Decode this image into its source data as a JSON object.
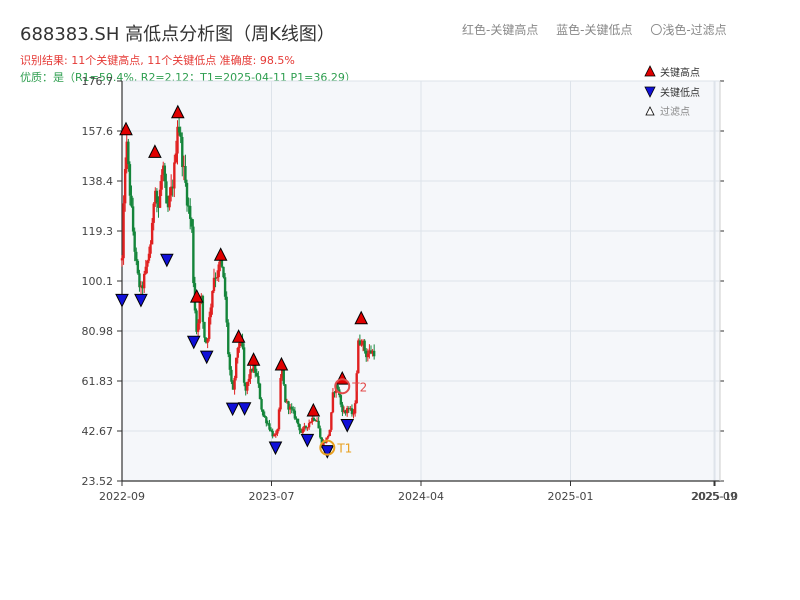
{
  "header": {
    "title": "688383.SH 高低点分析图（周K线图）",
    "result_line": "识别结果: 11个关键高点, 11个关键低点   准确度: 98.5%",
    "quality_line": "优质：是（R1=50.4%, R2=2.12；T1=2025-04-11 P1=36.29）"
  },
  "top_legend": {
    "red": "红色-关键高点",
    "blue": "蓝色-关键低点",
    "light": "〇浅色-过滤点"
  },
  "legend": {
    "high": "关键高点",
    "low": "关键低点",
    "filtered": "过滤点"
  },
  "colors": {
    "up": "#e02020",
    "down": "#14853a",
    "high_marker": "#e00000",
    "low_marker": "#1010d8",
    "t1": "#e8a020",
    "t2": "#e24a4a",
    "plot_bg": "#f5f7fa",
    "grid": "#dde3ea"
  },
  "chart_data": {
    "type": "candlestick",
    "title": "688383.SH 高低点分析图（周K线图）",
    "x_tick_labels": [
      "2022-09",
      "2023-07",
      "2024-04",
      "2025-01",
      "2025-09",
      "2025-10"
    ],
    "y_tick_labels": [
      "23.52",
      "42.67",
      "61.83",
      "80.98",
      "100.1",
      "119.3",
      "138.4",
      "157.6",
      "176.7"
    ],
    "ylim": [
      23.52,
      176.7
    ],
    "grid": true,
    "legend_position": "top-right",
    "x_positions": [
      0,
      150,
      300,
      450,
      594,
      595
    ],
    "n_candles": 160,
    "path_points": [
      [
        0,
        108
      ],
      [
        4,
        155
      ],
      [
        10,
        124
      ],
      [
        15,
        103
      ],
      [
        19,
        96
      ],
      [
        24,
        104
      ],
      [
        30,
        118
      ],
      [
        33,
        140
      ],
      [
        36,
        126
      ],
      [
        41,
        145
      ],
      [
        45,
        125
      ],
      [
        52,
        140
      ],
      [
        56,
        163
      ],
      [
        62,
        142
      ],
      [
        66,
        130
      ],
      [
        70,
        120
      ],
      [
        72,
        96
      ],
      [
        75,
        80
      ],
      [
        79,
        96
      ],
      [
        82,
        80
      ],
      [
        85,
        76
      ],
      [
        92,
        102
      ],
      [
        96,
        103
      ],
      [
        99,
        108
      ],
      [
        103,
        97
      ],
      [
        107,
        70
      ],
      [
        111,
        56
      ],
      [
        117,
        78
      ],
      [
        121,
        74
      ],
      [
        123,
        56
      ],
      [
        127,
        63
      ],
      [
        132,
        68
      ],
      [
        136,
        62
      ],
      [
        141,
        49
      ],
      [
        146,
        46
      ],
      [
        150,
        42
      ],
      [
        154,
        40
      ],
      [
        157,
        46
      ],
      [
        160,
        68
      ],
      [
        164,
        54
      ],
      [
        169,
        51
      ],
      [
        174,
        48
      ],
      [
        180,
        42
      ],
      [
        186,
        45
      ],
      [
        192,
        48
      ],
      [
        196,
        47
      ],
      [
        200,
        37
      ],
      [
        206,
        40
      ],
      [
        209,
        44
      ],
      [
        212,
        58
      ],
      [
        216,
        60
      ],
      [
        220,
        52
      ],
      [
        224,
        49
      ],
      [
        226,
        52
      ],
      [
        233,
        48
      ],
      [
        237,
        76
      ],
      [
        240,
        78
      ],
      [
        245,
        72
      ],
      [
        249,
        73
      ],
      [
        253,
        73
      ]
    ],
    "key_highs": [
      {
        "x": 4,
        "price": 156.9
      },
      {
        "x": 33,
        "price": 148.2
      },
      {
        "x": 56,
        "price": 163.4
      },
      {
        "x": 75,
        "price": 92.8
      },
      {
        "x": 99,
        "price": 108.8
      },
      {
        "x": 117,
        "price": 77.4
      },
      {
        "x": 132,
        "price": 68.6
      },
      {
        "x": 160,
        "price": 66.8
      },
      {
        "x": 192,
        "price": 49.2
      },
      {
        "x": 221,
        "price": 61.4
      },
      {
        "x": 240,
        "price": 84.5
      }
    ],
    "key_lows": [
      {
        "x": 0,
        "price": 94.2
      },
      {
        "x": 19,
        "price": 94.2
      },
      {
        "x": 45,
        "price": 109.6
      },
      {
        "x": 72,
        "price": 78.2
      },
      {
        "x": 85,
        "price": 72.5
      },
      {
        "x": 111,
        "price": 52.6
      },
      {
        "x": 123,
        "price": 52.7
      },
      {
        "x": 154,
        "price": 37.7
      },
      {
        "x": 186,
        "price": 40.6
      },
      {
        "x": 206,
        "price": 36.3
      },
      {
        "x": 226,
        "price": 46.3
      }
    ],
    "annotations": [
      {
        "label": "T1",
        "x": 206,
        "price": 36.29
      },
      {
        "label": "T2",
        "x": 221,
        "price": 59.8
      }
    ]
  }
}
